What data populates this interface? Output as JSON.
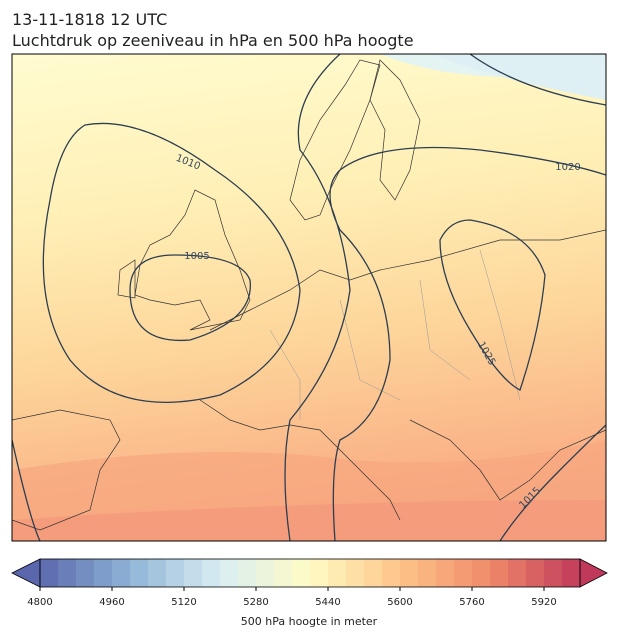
{
  "header": {
    "date": "13-11-1818 12 UTC",
    "title": "Luchtdruk op zeeniveau in hPa en 500 hPa hoogte"
  },
  "contour_labels": [
    "1010",
    "1005",
    "1020",
    "1025",
    "1015"
  ],
  "colorbar": {
    "label": "500 hPa hoogte in meter",
    "lim": [
      4800,
      6000
    ],
    "step": 40,
    "ticks": [
      4800,
      4960,
      5120,
      5280,
      5440,
      5600,
      5760,
      5920
    ],
    "colormap": [
      "#5a67ad",
      "#8fb4d6",
      "#d9eef4",
      "#fffbc4",
      "#fdc488",
      "#f08a6a",
      "#c0395a"
    ]
  }
}
